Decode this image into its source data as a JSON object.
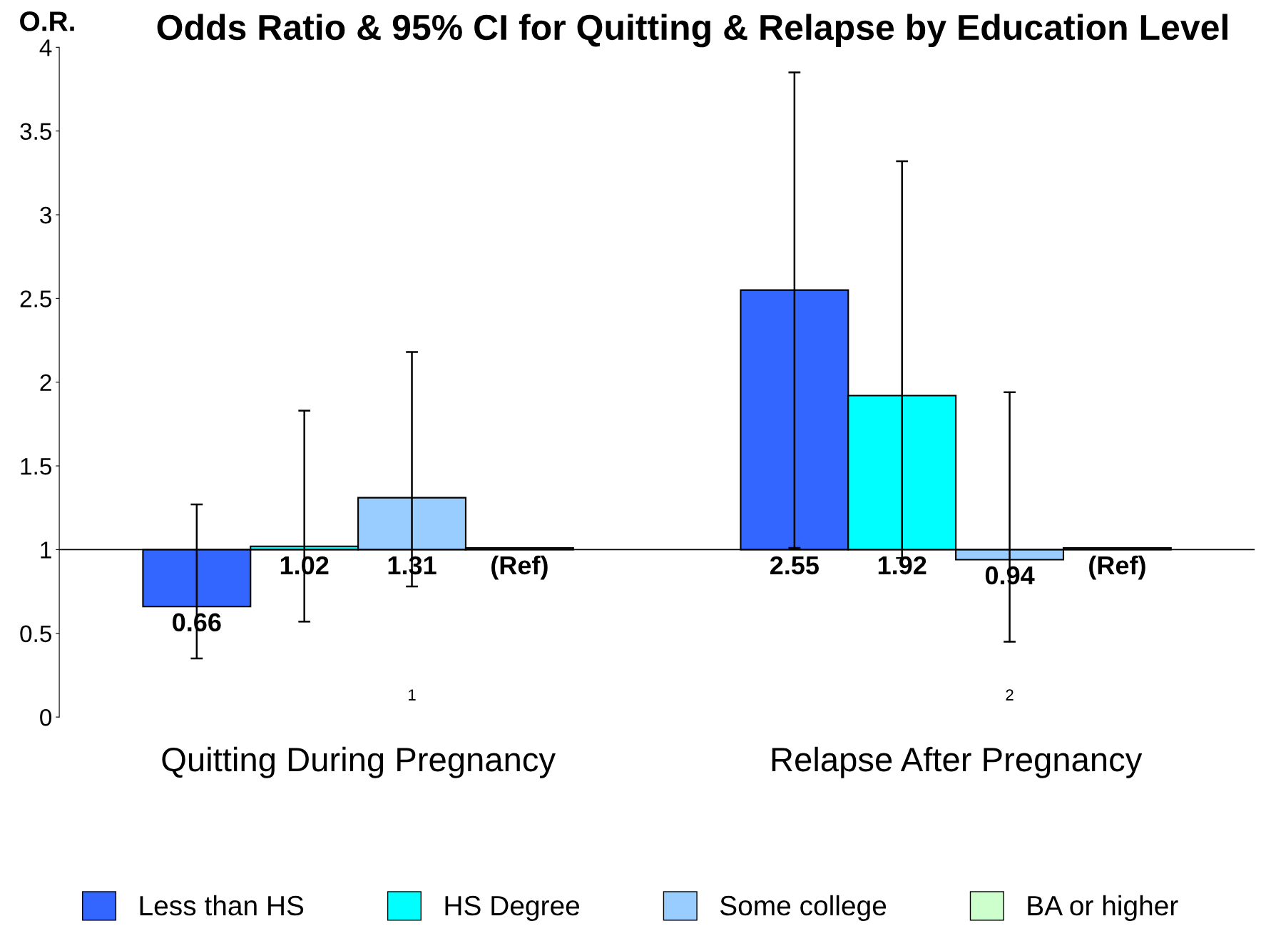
{
  "chart_data": {
    "type": "bar",
    "title": "Odds Ratio & 95% CI for Quitting & Relapse by Education Level",
    "ylabel": "O.R.",
    "categories": [
      "Quitting During Pregnancy",
      "Relapse After Pregnancy"
    ],
    "series": [
      {
        "name": "Less than HS",
        "color": "#3366ff",
        "base": [
          1,
          1
        ],
        "values": [
          -0.34,
          1.55
        ],
        "errors": [
          [
            0.35,
            1.27
          ],
          [
            1.01,
            3.85
          ]
        ],
        "value_labels": [
          "0.66",
          "2.55"
        ]
      },
      {
        "name": "HS Degree",
        "color": "#00ffff",
        "base": [
          1,
          1
        ],
        "values": [
          0.02,
          0.92
        ],
        "errors": [
          [
            0.57,
            1.83
          ],
          [
            0.95,
            3.32
          ]
        ],
        "value_labels": [
          "1.02",
          "1.92"
        ]
      },
      {
        "name": "Some college",
        "color": "#99ccff",
        "base": [
          1,
          1
        ],
        "values": [
          0.31,
          -0.06
        ],
        "errors": [
          [
            0.78,
            2.18
          ],
          [
            0.45,
            1.94
          ]
        ],
        "value_labels": [
          "1.31",
          "0.94"
        ]
      },
      {
        "name": "BA or higher",
        "color": "#ccffcc",
        "base": [
          1,
          1
        ],
        "values": [
          0.01,
          0.01
        ],
        "errors": [
          null,
          null
        ],
        "value_labels": [
          "(Ref)",
          "(Ref)"
        ]
      }
    ],
    "ylim": [
      0,
      4
    ],
    "yticks": [
      0,
      0.5,
      1,
      1.5,
      2,
      2.5,
      3,
      3.5,
      4
    ],
    "ref_lines": [
      {
        "axis": "y",
        "value": 1,
        "color": "#000000"
      }
    ],
    "annotations": [
      "1",
      "2"
    ],
    "grid": false,
    "legend": "bottom"
  }
}
